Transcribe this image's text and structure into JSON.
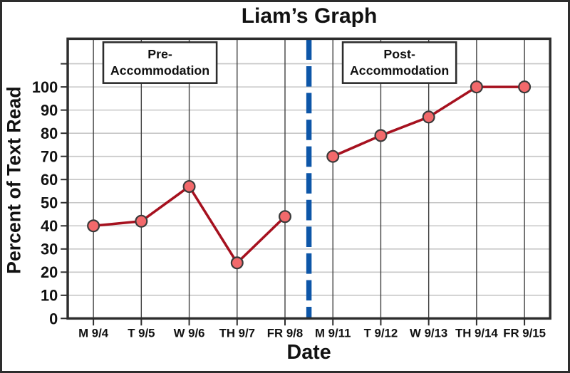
{
  "chart_data": {
    "type": "line",
    "title": "Liam’s Graph",
    "xlabel": "Date",
    "ylabel": "Percent of Text Read",
    "categories": [
      "M 9/4",
      "T 9/5",
      "W 9/6",
      "TH 9/7",
      "FR 9/8",
      "M 9/11",
      "T 9/12",
      "W 9/13",
      "TH 9/14",
      "FR 9/15"
    ],
    "series": [
      {
        "name": "Pre-Accommodation",
        "category_indices": [
          0,
          1,
          2,
          3,
          4
        ],
        "values": [
          40,
          42,
          57,
          24,
          44
        ]
      },
      {
        "name": "Post-Accommodation",
        "category_indices": [
          5,
          6,
          7,
          8,
          9
        ],
        "values": [
          70,
          79,
          87,
          100,
          100
        ]
      }
    ],
    "ylim": [
      0,
      121
    ],
    "ytick_step": 10,
    "ytick_label_max": 100,
    "grid": true,
    "legend_position": "none",
    "annotations": [
      {
        "id": "pre",
        "text_lines": [
          "Pre-",
          "Accommodation"
        ]
      },
      {
        "id": "post",
        "text_lines": [
          "Post-",
          "Accommodation"
        ]
      }
    ],
    "phase_change_line": {
      "orientation": "vertical",
      "style": "dashed",
      "between_categories": [
        "FR 9/8",
        "M 9/11"
      ]
    }
  },
  "colors": {
    "data_line": "#a6111f",
    "marker_fill": "#f2696b",
    "marker_stroke": "#3a3a3a",
    "phase_line": "#0d56a8",
    "grid_horizontal": "#c6c6c6",
    "grid_vertical": "#3f3f3f",
    "frame": "#2d2d2d",
    "text": "#111111",
    "background": "#ffffff"
  }
}
